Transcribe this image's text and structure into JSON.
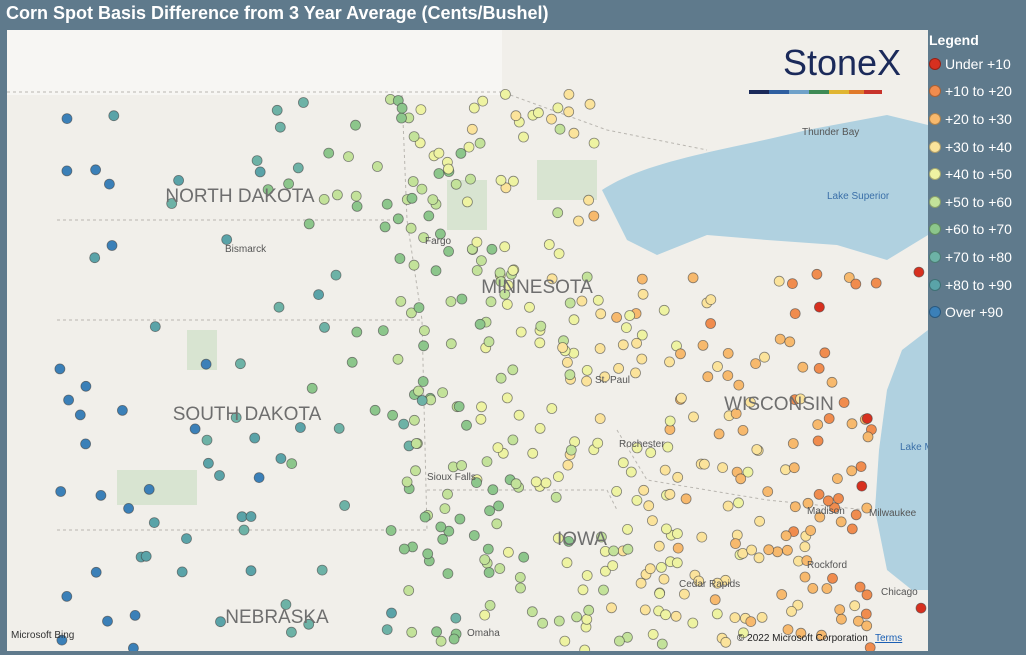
{
  "title": "Corn Spot Basis Difference from 3 Year Average (Cents/Bushel)",
  "legend": {
    "title": "Legend",
    "items": [
      {
        "label": "Under +10",
        "color": "#d7301f"
      },
      {
        "label": "+10 to +20",
        "color": "#f08c4e"
      },
      {
        "label": "+20 to +30",
        "color": "#f7b96d"
      },
      {
        "label": "+30 to +40",
        "color": "#fbe39b"
      },
      {
        "label": "+40 to +50",
        "color": "#eef3a2"
      },
      {
        "label": "+50 to +60",
        "color": "#c3e29a"
      },
      {
        "label": "+60 to +70",
        "color": "#8cc68b"
      },
      {
        "label": "+70 to +80",
        "color": "#6db2a6"
      },
      {
        "label": "+80 to +90",
        "color": "#5aa3a8"
      },
      {
        "label": "Over +90",
        "color": "#3b80b8"
      }
    ]
  },
  "logo": "StoneX",
  "states": [
    "NORTH DAKOTA",
    "SOUTH DAKOTA",
    "MINNESOTA",
    "WISCONSIN",
    "IOWA",
    "NEBRASKA"
  ],
  "places": [
    "Bismarck",
    "Fargo",
    "St. Paul",
    "Rochester",
    "Thunder Bay",
    "Lake Superior",
    "Lake Michigan",
    "Milwaukee",
    "Madison",
    "Rockford",
    "Chicago",
    "Cedar Rapids",
    "Omaha",
    "Sioux Falls"
  ],
  "attribution": {
    "provider": "Microsoft Bing",
    "copyright": "© 2022 Microsoft Corporation",
    "terms": "Terms"
  }
}
